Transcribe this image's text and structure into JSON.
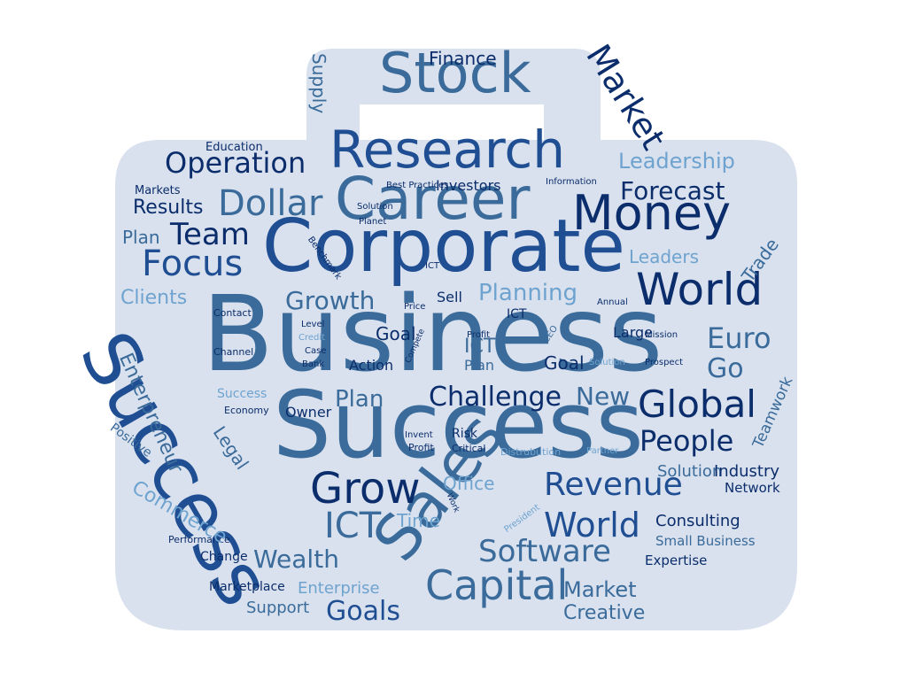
{
  "palette": {
    "bag": "#d9e1ee",
    "navy": "#0b2d6b",
    "blue": "#1f4e93",
    "steel": "#3a6b9a",
    "light": "#6fa3cf"
  },
  "words": [
    {
      "text": "Business",
      "color": "steel"
    },
    {
      "text": "Success",
      "color": "steel"
    },
    {
      "text": "Success",
      "color": "blue"
    },
    {
      "text": "Corporate",
      "color": "blue"
    },
    {
      "text": "Career",
      "color": "steel"
    },
    {
      "text": "Sales",
      "color": "steel"
    },
    {
      "text": "Research",
      "color": "blue"
    },
    {
      "text": "Stock",
      "color": "steel"
    },
    {
      "text": "Money",
      "color": "navy"
    },
    {
      "text": "World",
      "color": "navy"
    },
    {
      "text": "Grow",
      "color": "navy"
    },
    {
      "text": "Capital",
      "color": "steel"
    },
    {
      "text": "Global",
      "color": "navy"
    },
    {
      "text": "Revenue",
      "color": "blue"
    },
    {
      "text": "Software",
      "color": "steel"
    },
    {
      "text": "World",
      "color": "blue"
    },
    {
      "text": "Market",
      "color": "navy"
    },
    {
      "text": "Dollar",
      "color": "steel"
    },
    {
      "text": "Operation",
      "color": "navy"
    },
    {
      "text": "Focus",
      "color": "blue"
    },
    {
      "text": "Team",
      "color": "navy"
    },
    {
      "text": "Euro",
      "color": "steel"
    },
    {
      "text": "Go",
      "color": "steel"
    },
    {
      "text": "People",
      "color": "navy"
    },
    {
      "text": "Forecast",
      "color": "navy"
    },
    {
      "text": "Leadership",
      "color": "light"
    },
    {
      "text": "Leaders",
      "color": "light"
    },
    {
      "text": "Planning",
      "color": "light"
    },
    {
      "text": "Growth",
      "color": "steel"
    },
    {
      "text": "Clients",
      "color": "light"
    },
    {
      "text": "Results",
      "color": "navy"
    },
    {
      "text": "Plan",
      "color": "steel"
    },
    {
      "text": "Challenge",
      "color": "navy"
    },
    {
      "text": "New",
      "color": "steel"
    },
    {
      "text": "Plan",
      "color": "steel"
    },
    {
      "text": "ICT",
      "color": "steel"
    },
    {
      "text": "Time",
      "color": "light"
    },
    {
      "text": "Office",
      "color": "light"
    },
    {
      "text": "Wealth",
      "color": "steel"
    },
    {
      "text": "Goals",
      "color": "blue"
    },
    {
      "text": "Market",
      "color": "steel"
    },
    {
      "text": "Creative",
      "color": "steel"
    },
    {
      "text": "Consulting",
      "color": "navy"
    },
    {
      "text": "Small Business",
      "color": "steel"
    },
    {
      "text": "Expertise",
      "color": "navy"
    },
    {
      "text": "Solution",
      "color": "steel"
    },
    {
      "text": "Industry",
      "color": "navy"
    },
    {
      "text": "Network",
      "color": "navy"
    },
    {
      "text": "Teamwork",
      "color": "steel"
    },
    {
      "text": "Trade",
      "color": "steel"
    },
    {
      "text": "Enterprise",
      "color": "light"
    },
    {
      "text": "Support",
      "color": "steel"
    },
    {
      "text": "Marketplace",
      "color": "navy"
    },
    {
      "text": "Change",
      "color": "navy"
    },
    {
      "text": "Performance",
      "color": "navy"
    },
    {
      "text": "Commerce",
      "color": "light"
    },
    {
      "text": "Enterpreneur",
      "color": "steel"
    },
    {
      "text": "Legal",
      "color": "steel"
    },
    {
      "text": "Positive",
      "color": "steel"
    },
    {
      "text": "Economy",
      "color": "navy"
    },
    {
      "text": "Success",
      "color": "light"
    },
    {
      "text": "Owner",
      "color": "navy"
    },
    {
      "text": "Channel",
      "color": "navy"
    },
    {
      "text": "Bank",
      "color": "navy"
    },
    {
      "text": "Case",
      "color": "navy"
    },
    {
      "text": "Credit",
      "color": "light"
    },
    {
      "text": "Level",
      "color": "navy"
    },
    {
      "text": "Contact",
      "color": "navy"
    },
    {
      "text": "Markets",
      "color": "navy"
    },
    {
      "text": "Education",
      "color": "navy"
    },
    {
      "text": "Supply",
      "color": "steel"
    },
    {
      "text": "Finance",
      "color": "navy"
    },
    {
      "text": "Investors",
      "color": "navy"
    },
    {
      "text": "Best Practices",
      "color": "navy"
    },
    {
      "text": "Information",
      "color": "navy"
    },
    {
      "text": "Solution",
      "color": "navy"
    },
    {
      "text": "Planet",
      "color": "navy"
    },
    {
      "text": "Benchmark",
      "color": "navy"
    },
    {
      "text": "ICT",
      "color": "navy"
    },
    {
      "text": "Price",
      "color": "navy"
    },
    {
      "text": "Sell",
      "color": "navy"
    },
    {
      "text": "ICT",
      "color": "navy"
    },
    {
      "text": "Annual",
      "color": "navy"
    },
    {
      "text": "Goal",
      "color": "navy"
    },
    {
      "text": "Profit",
      "color": "navy"
    },
    {
      "text": "CEO",
      "color": "steel"
    },
    {
      "text": "Large",
      "color": "navy"
    },
    {
      "text": "Mission",
      "color": "navy"
    },
    {
      "text": "Prospect",
      "color": "navy"
    },
    {
      "text": "Goal",
      "color": "navy"
    },
    {
      "text": "Solution",
      "color": "light"
    },
    {
      "text": "ICT",
      "color": "steel"
    },
    {
      "text": "Plan",
      "color": "steel"
    },
    {
      "text": "Action",
      "color": "navy"
    },
    {
      "text": "Compete",
      "color": "navy"
    },
    {
      "text": "Invent",
      "color": "navy"
    },
    {
      "text": "Risk",
      "color": "navy"
    },
    {
      "text": "Profit",
      "color": "navy"
    },
    {
      "text": "Critical",
      "color": "navy"
    },
    {
      "text": "Distrubution",
      "color": "light"
    },
    {
      "text": "Partner",
      "color": "light"
    },
    {
      "text": "Work",
      "color": "navy"
    },
    {
      "text": "President",
      "color": "light"
    }
  ]
}
